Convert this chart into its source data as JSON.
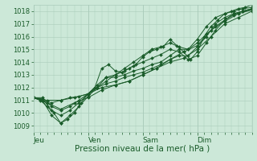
{
  "title": "",
  "xlabel": "Pression niveau de la mer( hPa )",
  "bg_color": "#cce8d8",
  "grid_color": "#aaccbb",
  "line_color": "#1a5c2a",
  "ylim": [
    1008.5,
    1018.5
  ],
  "xlim": [
    0,
    96
  ],
  "yticks": [
    1009,
    1010,
    1011,
    1012,
    1013,
    1014,
    1015,
    1016,
    1017,
    1018
  ],
  "xtick_positions": [
    0,
    24,
    48,
    72
  ],
  "xtick_labels": [
    "Jeu",
    "Ven",
    "Sam",
    "Dim"
  ],
  "series": [
    [
      0,
      1011.2,
      3,
      1011.0,
      6,
      1010.5,
      9,
      1010.0,
      12,
      1009.2,
      15,
      1009.5,
      18,
      1010.0,
      21,
      1010.8,
      24,
      1011.5,
      27,
      1012.0,
      30,
      1013.5,
      33,
      1013.8,
      36,
      1013.3,
      39,
      1013.2,
      42,
      1013.5,
      45,
      1013.8,
      48,
      1014.4,
      51,
      1014.8,
      54,
      1015.0,
      57,
      1015.2,
      60,
      1015.8,
      63,
      1015.3,
      66,
      1014.8,
      69,
      1014.2,
      72,
      1014.8,
      75,
      1016.0,
      78,
      1016.8,
      81,
      1017.3,
      84,
      1017.8,
      87,
      1018.0,
      90,
      1018.2,
      93,
      1018.3,
      96,
      1018.5
    ],
    [
      0,
      1011.2,
      4,
      1011.0,
      8,
      1009.8,
      12,
      1009.2,
      16,
      1009.8,
      20,
      1010.5,
      24,
      1011.3,
      28,
      1012.0,
      32,
      1012.8,
      36,
      1013.0,
      40,
      1013.3,
      44,
      1013.7,
      48,
      1014.0,
      52,
      1014.3,
      56,
      1014.6,
      60,
      1015.0,
      64,
      1014.8,
      68,
      1014.2,
      72,
      1014.5,
      76,
      1015.5,
      80,
      1016.5,
      84,
      1017.3,
      88,
      1017.8,
      92,
      1018.0,
      96,
      1018.2
    ],
    [
      0,
      1011.2,
      4,
      1011.1,
      8,
      1010.2,
      12,
      1009.8,
      16,
      1010.2,
      20,
      1010.8,
      24,
      1011.5,
      28,
      1012.2,
      32,
      1012.8,
      36,
      1012.8,
      40,
      1013.0,
      44,
      1013.3,
      48,
      1013.5,
      52,
      1013.8,
      56,
      1014.0,
      60,
      1014.5,
      64,
      1015.0,
      68,
      1015.0,
      72,
      1015.5,
      76,
      1016.2,
      80,
      1016.8,
      84,
      1017.3,
      88,
      1017.7,
      92,
      1018.0,
      96,
      1018.2
    ],
    [
      0,
      1011.2,
      4,
      1011.2,
      8,
      1010.5,
      12,
      1010.2,
      16,
      1010.5,
      20,
      1011.0,
      24,
      1011.5,
      28,
      1012.0,
      32,
      1012.3,
      36,
      1012.5,
      40,
      1012.8,
      44,
      1013.0,
      48,
      1013.2,
      52,
      1013.5,
      56,
      1013.8,
      60,
      1014.2,
      64,
      1014.5,
      68,
      1014.5,
      72,
      1015.2,
      76,
      1016.0,
      80,
      1017.0,
      84,
      1017.5,
      88,
      1017.8,
      92,
      1018.0,
      96,
      1018.1
    ],
    [
      0,
      1011.2,
      6,
      1010.8,
      12,
      1010.3,
      18,
      1010.8,
      24,
      1011.2,
      30,
      1011.8,
      36,
      1012.2,
      42,
      1012.5,
      48,
      1013.0,
      54,
      1013.5,
      60,
      1014.2,
      66,
      1014.8,
      72,
      1015.3,
      78,
      1016.5,
      84,
      1017.2,
      90,
      1017.8,
      96,
      1018.1
    ],
    [
      0,
      1011.2,
      6,
      1011.0,
      12,
      1011.0,
      18,
      1011.2,
      24,
      1011.5,
      30,
      1012.0,
      36,
      1012.2,
      42,
      1012.5,
      48,
      1013.0,
      54,
      1013.5,
      60,
      1014.0,
      66,
      1014.3,
      72,
      1015.0,
      78,
      1016.0,
      84,
      1017.0,
      90,
      1017.5,
      96,
      1018.0
    ],
    [
      0,
      1011.2,
      4,
      1011.0,
      8,
      1010.8,
      12,
      1011.0,
      16,
      1011.2,
      20,
      1011.3,
      24,
      1011.5,
      28,
      1012.0,
      32,
      1012.5,
      36,
      1013.0,
      40,
      1013.5,
      44,
      1014.0,
      48,
      1014.5,
      52,
      1015.0,
      56,
      1015.2,
      60,
      1015.5,
      64,
      1015.2,
      68,
      1015.0,
      72,
      1015.8,
      76,
      1016.8,
      80,
      1017.5,
      84,
      1017.8,
      88,
      1018.0,
      92,
      1018.2,
      96,
      1018.3
    ]
  ]
}
